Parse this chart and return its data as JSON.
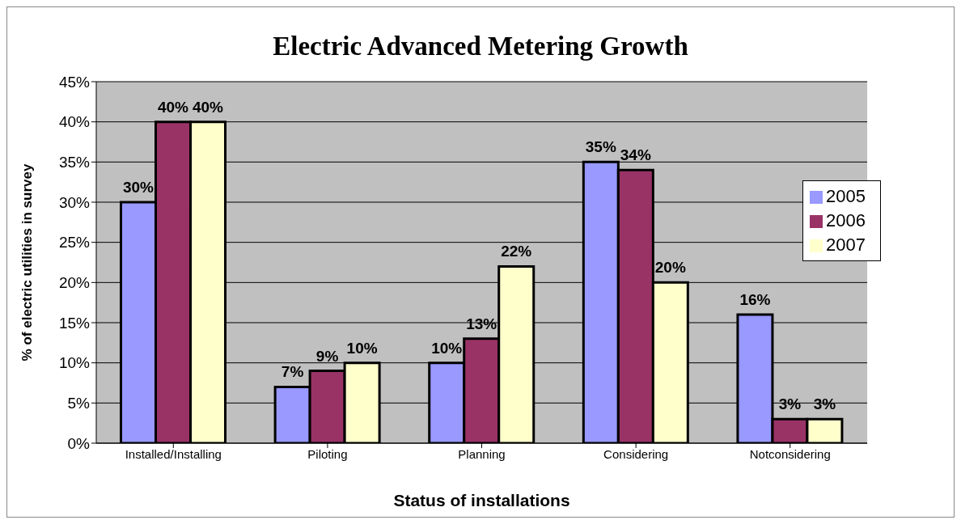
{
  "chart_data": {
    "type": "bar",
    "title": "Electric Advanced Metering Growth",
    "xlabel": "Status of installations",
    "ylabel": "% of electric utilities in survey",
    "categories": [
      "Installed/Installing",
      "Piloting",
      "Planning",
      "Considering",
      "Notconsidering"
    ],
    "series": [
      {
        "name": "2005",
        "color": "#9999ff",
        "values": [
          30,
          7,
          10,
          35,
          16
        ],
        "value_labels": [
          "30%",
          "7%",
          "10%",
          "35%",
          "16%"
        ]
      },
      {
        "name": "2006",
        "color": "#993366",
        "values": [
          40,
          9,
          13,
          34,
          3
        ],
        "value_labels": [
          "40%",
          "9%",
          "13%",
          "34%",
          "3%"
        ]
      },
      {
        "name": "2007",
        "color": "#ffffcc",
        "values": [
          40,
          10,
          22,
          20,
          3
        ],
        "value_labels": [
          "40%",
          "10%",
          "22%",
          "20%",
          "3%"
        ]
      }
    ],
    "ylim": [
      0,
      45
    ],
    "yticks": [
      {
        "value": 0,
        "label": "0%"
      },
      {
        "value": 5,
        "label": "5%"
      },
      {
        "value": 10,
        "label": "10%"
      },
      {
        "value": 15,
        "label": "15%"
      },
      {
        "value": 20,
        "label": "20%"
      },
      {
        "value": 25,
        "label": "25%"
      },
      {
        "value": 30,
        "label": "30%"
      },
      {
        "value": 35,
        "label": "35%"
      },
      {
        "value": 40,
        "label": "40%"
      },
      {
        "value": 45,
        "label": "45%"
      }
    ],
    "grid": "y",
    "legend": "top right"
  }
}
